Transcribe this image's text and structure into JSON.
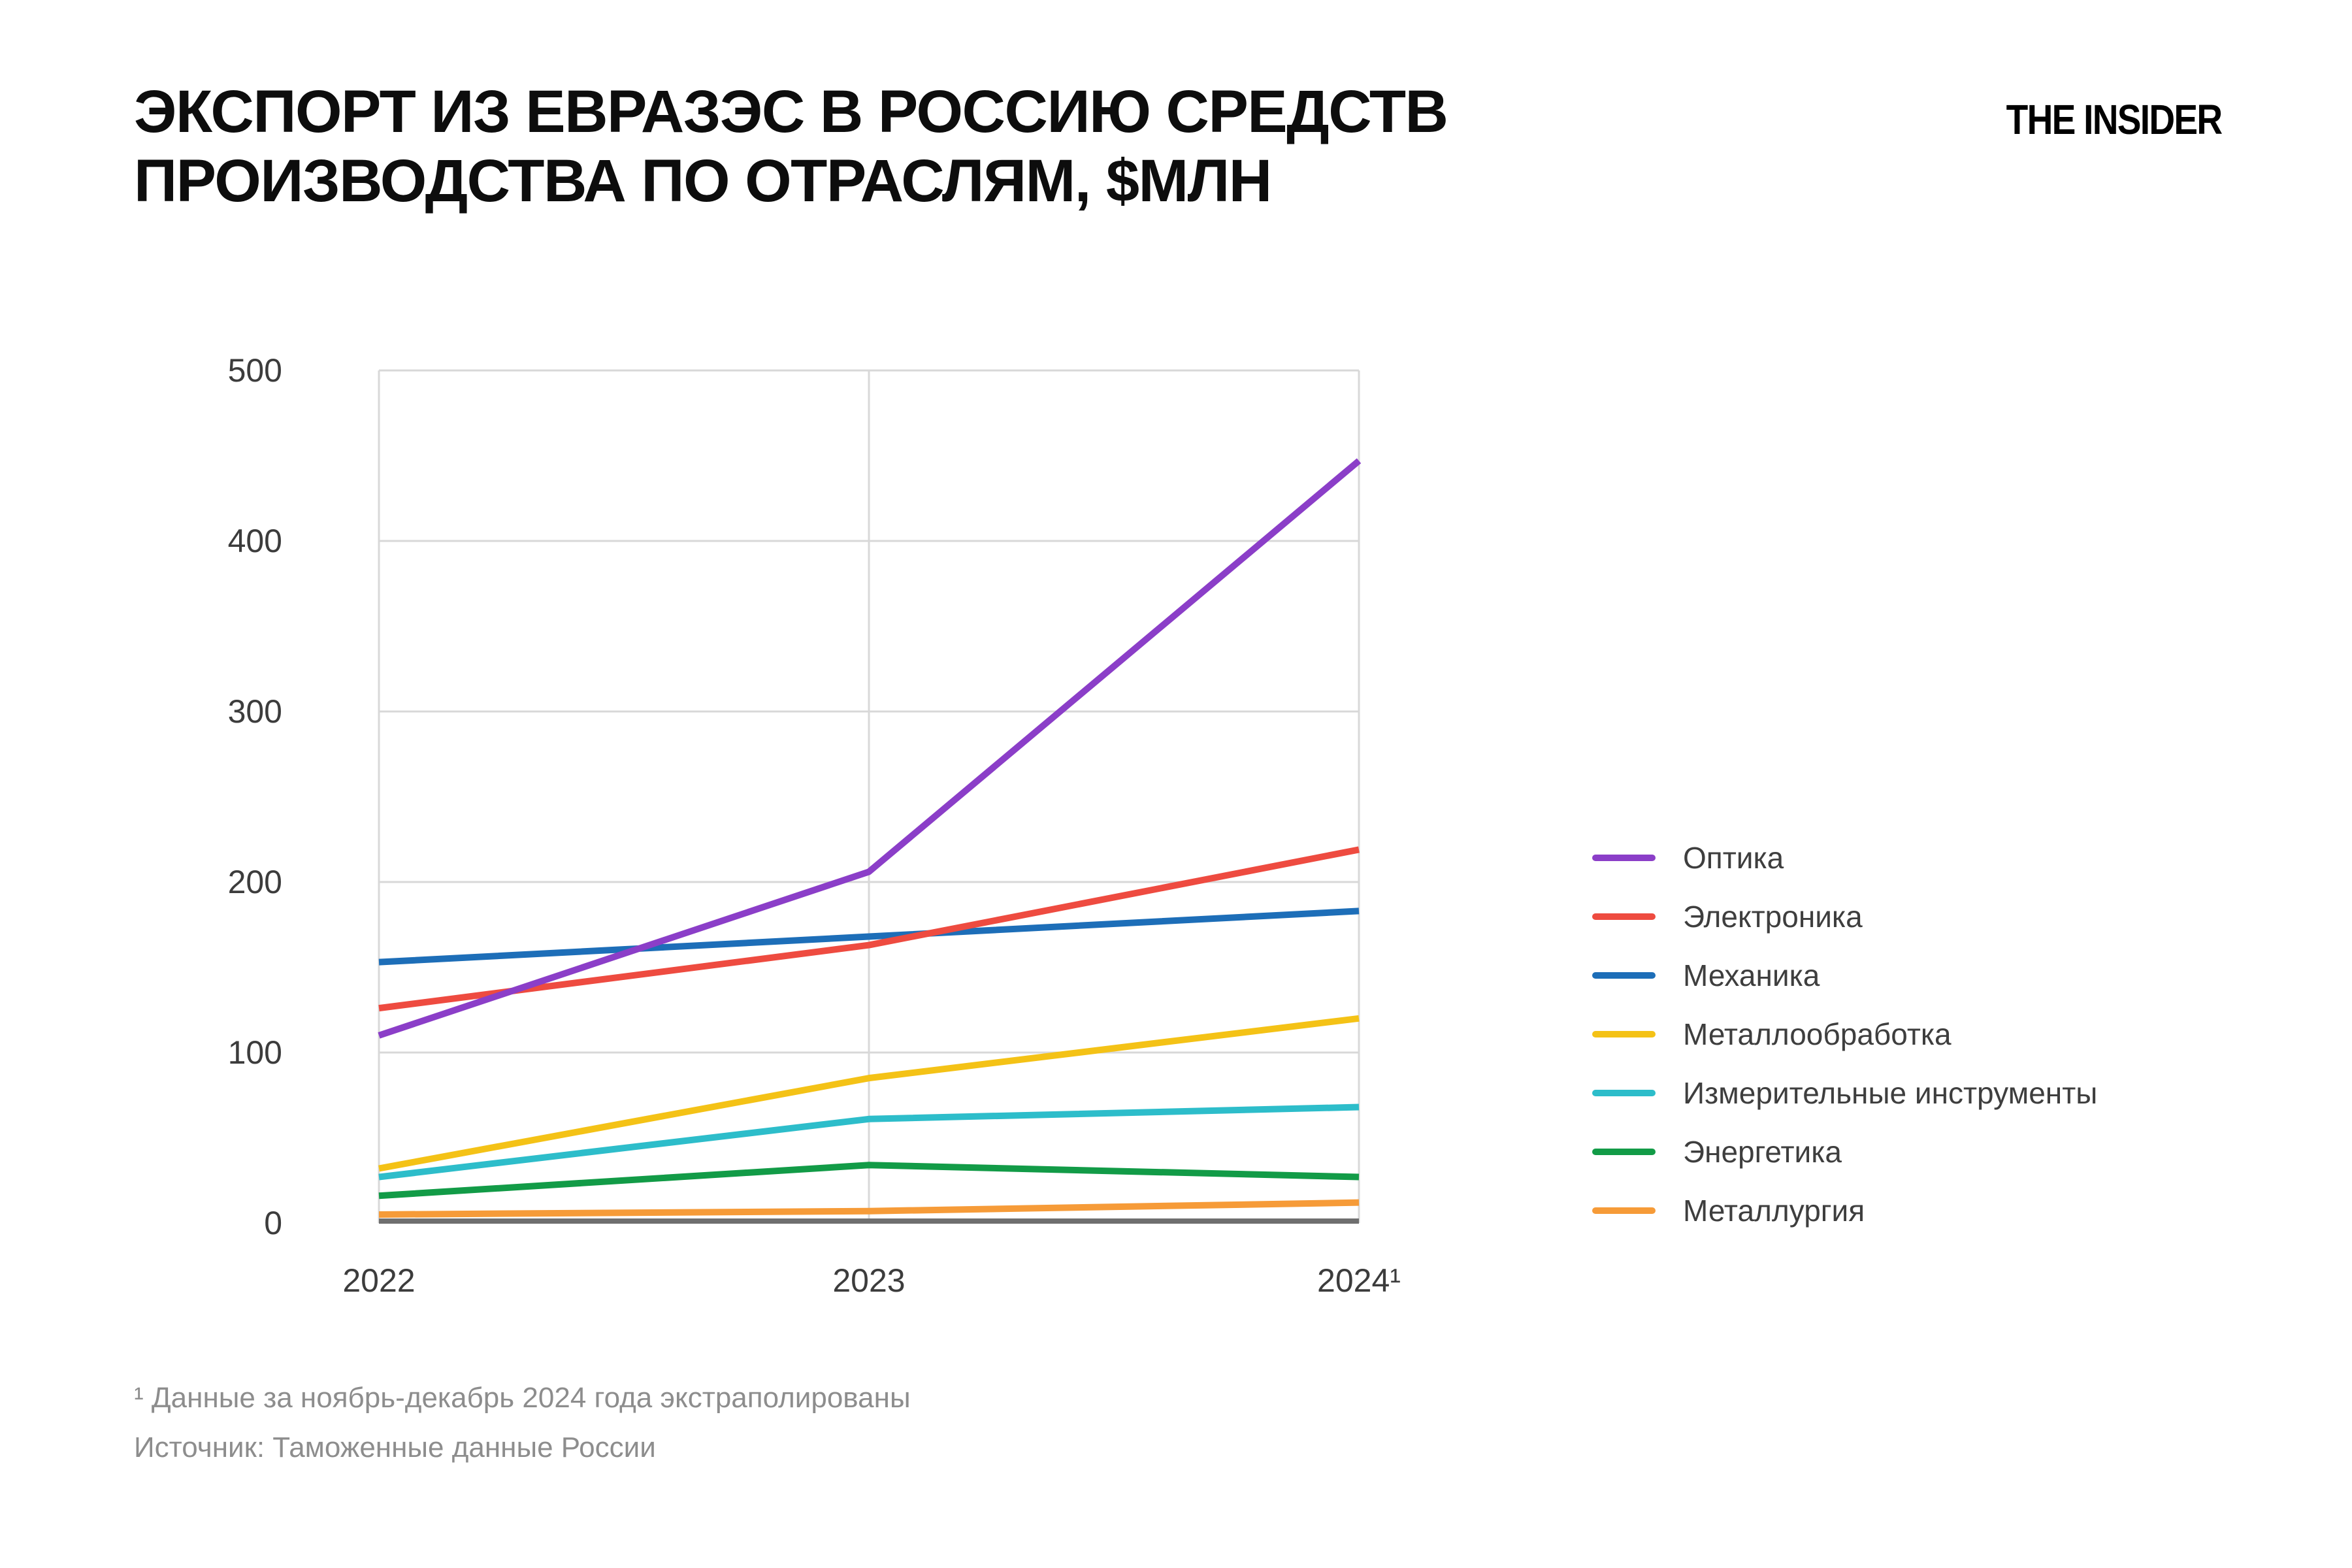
{
  "page": {
    "background": "#ffffff"
  },
  "header": {
    "title_line1": "ЭКСПОРТ ИЗ ЕВРАЗЭС В РОССИЮ СРЕДСТВ",
    "title_line2": "ПРОИЗВОДСТВА ПО ОТРАСЛЯМ, $МЛН",
    "brand": "THE INSIDER"
  },
  "chart_data": {
    "type": "line",
    "title": "ЭКСПОРТ ИЗ ЕВРАЗЭС В РОССИЮ СРЕДСТВ ПРОИЗВОДСТВА ПО ОТРАСЛЯМ, $МЛН",
    "x": [
      2022,
      2023,
      2024
    ],
    "x_tick_labels": [
      "2022",
      "2023",
      "2024¹"
    ],
    "ylim": [
      0,
      500
    ],
    "yticks": [
      0,
      100,
      200,
      300,
      400,
      500
    ],
    "grid": true,
    "grid_color": "#d8d8d8",
    "axis_color": "#6f6f6f",
    "legend_position": "right",
    "series": [
      {
        "name": "Оптика",
        "color": "#8b3ec8",
        "values": [
          110,
          206,
          447
        ]
      },
      {
        "name": "Электроника",
        "color": "#ee4b40",
        "values": [
          126,
          163,
          219
        ]
      },
      {
        "name": "Механика",
        "color": "#1d6eb8",
        "values": [
          153,
          168,
          183
        ]
      },
      {
        "name": "Металлообработка",
        "color": "#f4c216",
        "values": [
          32,
          85,
          120
        ]
      },
      {
        "name": "Измерительные инструменты",
        "color": "#2dbdca",
        "values": [
          27,
          61,
          68
        ]
      },
      {
        "name": "Энергетика",
        "color": "#129b47",
        "values": [
          16,
          34,
          27
        ]
      },
      {
        "name": "Металлургия",
        "color": "#f69b38",
        "values": [
          5,
          7,
          12
        ]
      }
    ]
  },
  "footnotes": {
    "note": "¹ Данные за ноябрь-декабрь 2024 года экстраполированы",
    "source": "Источник: Таможенные данные России"
  }
}
